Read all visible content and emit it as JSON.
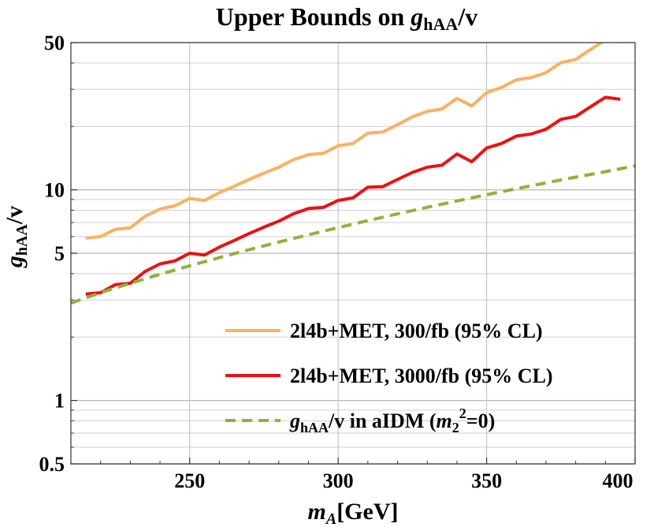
{
  "chart_data": {
    "type": "line",
    "title": {
      "main": "Upper Bounds on ",
      "var": "g",
      "sub": "hAA",
      "tail": "/v"
    },
    "xlabel": {
      "var": "m",
      "sub": "A",
      "tail": "[GeV]"
    },
    "ylabel": {
      "var": "g",
      "sub": "hAA",
      "tail": "/v"
    },
    "xlim": [
      210,
      400
    ],
    "ylim": [
      0.5,
      50
    ],
    "yscale": "log",
    "x_ticks": [
      250,
      300,
      350,
      400
    ],
    "x_tick_labels": [
      "250",
      "300",
      "350",
      "400"
    ],
    "y_ticks": [
      0.5,
      1,
      5,
      10,
      50
    ],
    "y_tick_labels": [
      "0.5",
      "1",
      "5",
      "10",
      "50"
    ],
    "y_minor_gridlines": [
      0.6,
      0.7,
      0.8,
      0.9,
      2,
      3,
      4,
      6,
      7,
      8,
      9,
      20,
      30,
      40
    ],
    "x_gridlines": [
      250,
      300,
      350
    ],
    "grid": true,
    "legend_position": "bottom-right",
    "series": [
      {
        "name": "2l4b+MET, 300/fb (95% CL)",
        "color": "#F9B262",
        "style": "solid",
        "x": [
          215,
          220,
          225,
          230,
          235,
          240,
          245,
          250,
          255,
          260,
          265,
          270,
          275,
          280,
          285,
          290,
          295,
          300,
          305,
          310,
          315,
          320,
          325,
          330,
          335,
          340,
          345,
          350,
          355,
          360,
          365,
          370,
          375,
          380,
          385,
          390,
          395
        ],
        "y": [
          5.9,
          6.0,
          6.5,
          6.6,
          7.5,
          8.1,
          8.4,
          9.1,
          8.9,
          9.7,
          10.4,
          11.2,
          12.0,
          12.8,
          13.9,
          14.7,
          14.9,
          16.2,
          16.6,
          18.6,
          18.8,
          20.4,
          22.2,
          23.6,
          24.2,
          27.2,
          25.0,
          29.0,
          30.6,
          33.3,
          34.1,
          36.0,
          40.2,
          41.6,
          46.4,
          51.5,
          50.5
        ]
      },
      {
        "name": "2l4b+MET, 3000/fb (95% CL)",
        "color": "#EE1010",
        "style": "solid",
        "x": [
          215,
          220,
          225,
          230,
          235,
          240,
          245,
          250,
          255,
          260,
          265,
          270,
          275,
          280,
          285,
          290,
          295,
          300,
          305,
          310,
          315,
          320,
          325,
          330,
          335,
          340,
          345,
          350,
          355,
          360,
          365,
          370,
          375,
          380,
          385,
          390,
          395
        ],
        "y": [
          3.2,
          3.25,
          3.55,
          3.6,
          4.1,
          4.45,
          4.6,
          5.0,
          4.9,
          5.35,
          5.75,
          6.2,
          6.65,
          7.1,
          7.7,
          8.15,
          8.25,
          8.9,
          9.15,
          10.3,
          10.35,
          11.2,
          12.1,
          12.8,
          13.1,
          14.8,
          13.6,
          15.8,
          16.6,
          18.0,
          18.4,
          19.4,
          21.6,
          22.3,
          24.8,
          27.5,
          26.9
        ]
      },
      {
        "name": "g_hAA/v in aIDM (m_2^2=0)",
        "label_parts": {
          "g": "g",
          "sub": "hAA",
          "mid": "/v in aIDM (",
          "m": "m",
          "msub": "2",
          "msup": "2",
          "tail": "=0)"
        },
        "color": "#8CB43A",
        "style": "dashed",
        "x": [
          210,
          220,
          230,
          240,
          250,
          260,
          270,
          280,
          290,
          300,
          310,
          320,
          330,
          340,
          350,
          360,
          370,
          380,
          390,
          400
        ],
        "y": [
          2.9,
          3.25,
          3.6,
          3.97,
          4.36,
          4.77,
          5.2,
          5.65,
          6.12,
          6.62,
          7.14,
          7.69,
          8.26,
          8.86,
          9.48,
          10.12,
          10.79,
          11.49,
          12.2,
          13.0
        ]
      }
    ]
  }
}
